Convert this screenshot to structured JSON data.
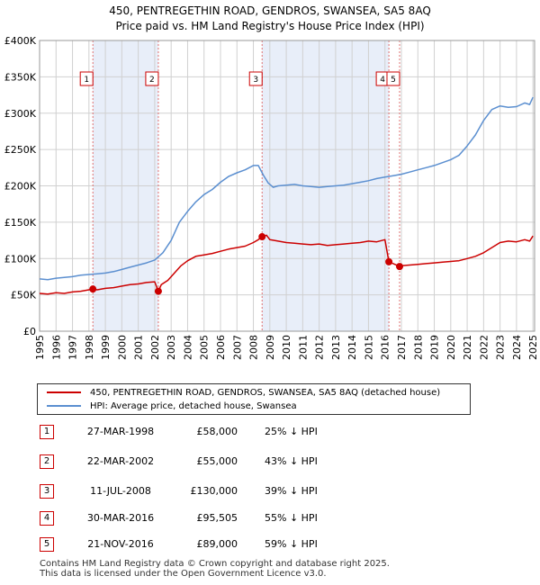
{
  "chart_data": {
    "type": "line",
    "title": "450, PENTREGETHIN ROAD, GENDROS, SWANSEA, SA5 8AQ",
    "subtitle": "Price paid vs. HM Land Registry's House Price Index (HPI)",
    "xlim": [
      1995,
      2025.1
    ],
    "ylim": [
      0,
      400000
    ],
    "y_ticks": [
      0,
      50000,
      100000,
      150000,
      200000,
      250000,
      300000,
      350000,
      400000
    ],
    "y_tick_labels": [
      "£0",
      "£50K",
      "£100K",
      "£150K",
      "£200K",
      "£250K",
      "£300K",
      "£350K",
      "£400K"
    ],
    "x_ticks": [
      1995,
      1996,
      1997,
      1998,
      1999,
      2000,
      2001,
      2002,
      2003,
      2004,
      2005,
      2006,
      2007,
      2008,
      2009,
      2010,
      2011,
      2012,
      2013,
      2014,
      2015,
      2016,
      2017,
      2018,
      2019,
      2020,
      2021,
      2022,
      2023,
      2024,
      2025
    ],
    "x_tick_labels": [
      "1995",
      "1996",
      "1997",
      "1998",
      "1999",
      "2000",
      "2001",
      "2002",
      "2003",
      "2004",
      "2005",
      "2006",
      "2007",
      "2008",
      "2009",
      "2010",
      "2011",
      "2012",
      "2013",
      "2014",
      "2015",
      "2016",
      "2017",
      "2018",
      "2019",
      "2020",
      "2021",
      "2022",
      "2023",
      "2024",
      "2025"
    ],
    "grid": true,
    "series": [
      {
        "name": "450, PENTREGETHIN ROAD, GENDROS, SWANSEA, SA5 8AQ (detached house)",
        "color": "#cc0000",
        "x": [
          1995.0,
          1995.5,
          1996.0,
          1996.5,
          1997.0,
          1997.5,
          1998.0,
          1998.24,
          1998.5,
          1999.0,
          1999.5,
          2000.0,
          2000.5,
          2001.0,
          2001.5,
          2002.0,
          2002.22,
          2002.4,
          2002.8,
          2003.2,
          2003.6,
          2004.0,
          2004.5,
          2005.0,
          2005.5,
          2006.0,
          2006.5,
          2007.0,
          2007.5,
          2008.0,
          2008.3,
          2008.53,
          2008.8,
          2009.0,
          2009.5,
          2010.0,
          2010.5,
          2011.0,
          2011.5,
          2012.0,
          2012.5,
          2013.0,
          2013.5,
          2014.0,
          2014.5,
          2015.0,
          2015.5,
          2016.0,
          2016.24,
          2016.5,
          2016.89,
          2017.0,
          2017.5,
          2018.0,
          2018.5,
          2019.0,
          2019.5,
          2020.0,
          2020.5,
          2021.0,
          2021.5,
          2022.0,
          2022.5,
          2023.0,
          2023.5,
          2024.0,
          2024.5,
          2024.8,
          2025.0
        ],
        "y": [
          52000,
          51000,
          53000,
          52000,
          54000,
          55000,
          57000,
          58000,
          57000,
          59000,
          60000,
          62000,
          64000,
          65000,
          67000,
          68000,
          55000,
          64000,
          70000,
          80000,
          90000,
          97000,
          103000,
          105000,
          107000,
          110000,
          113000,
          115000,
          117000,
          122000,
          126000,
          130000,
          132000,
          126000,
          124000,
          122000,
          121000,
          120000,
          119000,
          120000,
          118000,
          119000,
          120000,
          121000,
          122000,
          124000,
          123000,
          126000,
          95505,
          93000,
          89000,
          90000,
          91000,
          92000,
          93000,
          94000,
          95000,
          96000,
          97000,
          100000,
          103000,
          108000,
          115000,
          122000,
          124000,
          123000,
          126000,
          124000,
          131000
        ]
      },
      {
        "name": "HPI: Average price, detached house, Swansea",
        "color": "#5b8fd0",
        "x": [
          1995.0,
          1995.5,
          1996.0,
          1996.5,
          1997.0,
          1997.5,
          1998.0,
          1998.5,
          1999.0,
          1999.5,
          2000.0,
          2000.5,
          2001.0,
          2001.5,
          2002.0,
          2002.5,
          2003.0,
          2003.5,
          2004.0,
          2004.5,
          2005.0,
          2005.5,
          2006.0,
          2006.5,
          2007.0,
          2007.5,
          2008.0,
          2008.3,
          2008.6,
          2008.9,
          2009.2,
          2009.5,
          2010.0,
          2010.5,
          2011.0,
          2011.5,
          2012.0,
          2012.5,
          2013.0,
          2013.5,
          2014.0,
          2014.5,
          2015.0,
          2015.5,
          2016.0,
          2016.5,
          2017.0,
          2017.5,
          2018.0,
          2018.5,
          2019.0,
          2019.5,
          2020.0,
          2020.5,
          2021.0,
          2021.5,
          2022.0,
          2022.5,
          2023.0,
          2023.5,
          2024.0,
          2024.5,
          2024.8,
          2025.0
        ],
        "y": [
          72000,
          71000,
          73000,
          74000,
          75000,
          77000,
          78000,
          79000,
          80000,
          82000,
          85000,
          88000,
          91000,
          94000,
          98000,
          108000,
          125000,
          150000,
          165000,
          178000,
          188000,
          195000,
          205000,
          213000,
          218000,
          222000,
          228000,
          228000,
          215000,
          204000,
          198000,
          200000,
          201000,
          202000,
          200000,
          199000,
          198000,
          199000,
          200000,
          201000,
          203000,
          205000,
          207000,
          210000,
          212000,
          214000,
          216000,
          219000,
          222000,
          225000,
          228000,
          232000,
          236000,
          242000,
          255000,
          270000,
          290000,
          305000,
          310000,
          308000,
          309000,
          314000,
          312000,
          322000
        ]
      }
    ],
    "markers": [
      {
        "label": "1",
        "x": 1998.24,
        "y": 58000
      },
      {
        "label": "2",
        "x": 2002.22,
        "y": 55000
      },
      {
        "label": "3",
        "x": 2008.53,
        "y": 130000
      },
      {
        "label": "4",
        "x": 2016.24,
        "y": 95505
      },
      {
        "label": "5",
        "x": 2016.89,
        "y": 89000
      }
    ],
    "highlight_spans": [
      [
        1998.24,
        2002.22
      ],
      [
        2008.53,
        2016.24
      ]
    ],
    "colors": {
      "highlight": "#e8eef9",
      "vline": "#e07070",
      "grid": "#d0d0d0",
      "axis": "#000000",
      "marker_box": "#cc0000"
    }
  },
  "legend": {
    "items": [
      {
        "label": "450, PENTREGETHIN ROAD, GENDROS, SWANSEA, SA5 8AQ (detached house)",
        "color": "#cc0000"
      },
      {
        "label": "HPI: Average price, detached house, Swansea",
        "color": "#5b8fd0"
      }
    ]
  },
  "sales": [
    {
      "num": "1",
      "date": "27-MAR-1998",
      "price": "£58,000",
      "hpi": "25% ↓ HPI"
    },
    {
      "num": "2",
      "date": "22-MAR-2002",
      "price": "£55,000",
      "hpi": "43% ↓ HPI"
    },
    {
      "num": "3",
      "date": "11-JUL-2008",
      "price": "£130,000",
      "hpi": "39% ↓ HPI"
    },
    {
      "num": "4",
      "date": "30-MAR-2016",
      "price": "£95,505",
      "hpi": "55% ↓ HPI"
    },
    {
      "num": "5",
      "date": "21-NOV-2016",
      "price": "£89,000",
      "hpi": "59% ↓ HPI"
    }
  ],
  "footer": {
    "line1": "Contains HM Land Registry data © Crown copyright and database right 2025.",
    "line2": "This data is licensed under the Open Government Licence v3.0."
  }
}
